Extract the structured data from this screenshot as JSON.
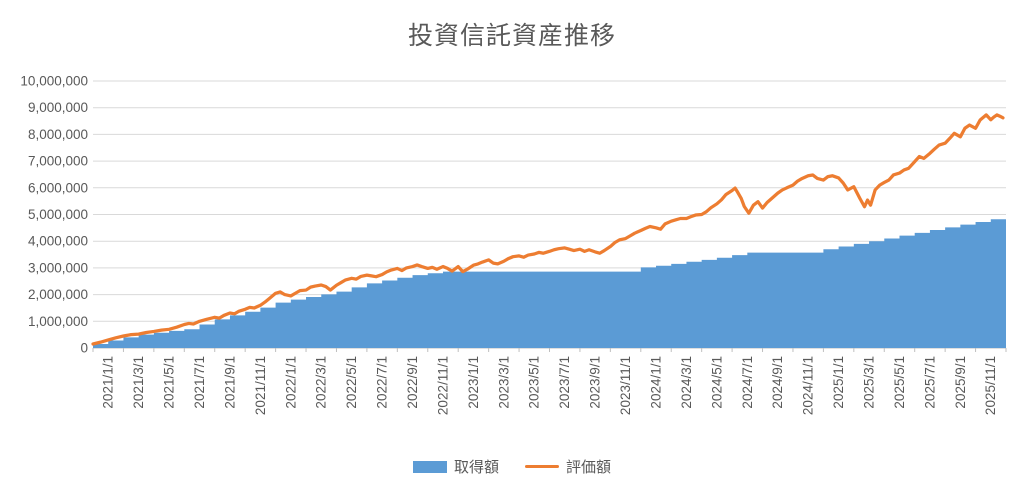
{
  "title": "投資信託資産推移",
  "colors": {
    "area": "#5B9BD5",
    "line": "#ED7D31",
    "gridline": "#D9D9D9",
    "axis": "#BFBFBF",
    "text": "#595959"
  },
  "legend": {
    "items": [
      {
        "label": "取得額",
        "type": "area",
        "color": "#5B9BD5"
      },
      {
        "label": "評価額",
        "type": "line",
        "color": "#ED7D31"
      }
    ]
  },
  "chart_data": {
    "type": "combo",
    "title": "投資信託資産推移",
    "xlabel": "",
    "ylabel": "",
    "grid": true,
    "legend_position": "bottom",
    "ylim": [
      0,
      10000000
    ],
    "y_tick_step": 1000000,
    "y_tick_labels": [
      "0",
      "1,000,000",
      "2,000,000",
      "3,000,000",
      "4,000,000",
      "5,000,000",
      "6,000,000",
      "7,000,000",
      "8,000,000",
      "9,000,000",
      "10,000,000"
    ],
    "x_range": [
      "2021/1/1",
      "2025/12/31"
    ],
    "months_span": 60,
    "x_tick_labels": [
      "2021/1/1",
      "2021/3/1",
      "2021/5/1",
      "2021/7/1",
      "2021/9/1",
      "2021/11/1",
      "2022/1/1",
      "2022/3/1",
      "2022/5/1",
      "2022/7/1",
      "2022/9/1",
      "2022/11/1",
      "2023/1/1",
      "2023/3/1",
      "2023/5/1",
      "2023/7/1",
      "2023/9/1",
      "2023/11/1",
      "2024/1/1",
      "2024/3/1",
      "2024/5/1",
      "2024/7/1",
      "2024/9/1",
      "2024/11/1",
      "2025/1/1",
      "2025/3/1",
      "2025/5/1",
      "2025/7/1",
      "2025/9/1",
      "2025/11/1"
    ],
    "series": [
      {
        "name": "取得額",
        "type": "area",
        "color": "#5B9BD5",
        "unit": "monthly cumulative, yen",
        "values": [
          150000,
          280000,
          400000,
          500000,
          570000,
          640000,
          700000,
          880000,
          1070000,
          1220000,
          1360000,
          1510000,
          1700000,
          1810000,
          1910000,
          2010000,
          2110000,
          2270000,
          2420000,
          2530000,
          2630000,
          2730000,
          2800000,
          2860000,
          2860000,
          2860000,
          2860000,
          2860000,
          2860000,
          2860000,
          2860000,
          2860000,
          2860000,
          2860000,
          2860000,
          2860000,
          3020000,
          3080000,
          3150000,
          3230000,
          3300000,
          3380000,
          3480000,
          3570000,
          3570000,
          3570000,
          3570000,
          3570000,
          3700000,
          3800000,
          3900000,
          4000000,
          4100000,
          4210000,
          4310000,
          4420000,
          4520000,
          4620000,
          4720000,
          4820000
        ]
      },
      {
        "name": "評価額",
        "type": "line",
        "color": "#ED7D31",
        "unit": "[months since 2021/1/1, yen]",
        "points": [
          [
            0,
            150000
          ],
          [
            0.5,
            220000
          ],
          [
            1,
            300000
          ],
          [
            1.5,
            380000
          ],
          [
            2,
            450000
          ],
          [
            2.5,
            500000
          ],
          [
            3,
            520000
          ],
          [
            3.5,
            580000
          ],
          [
            4,
            620000
          ],
          [
            4.5,
            670000
          ],
          [
            5,
            700000
          ],
          [
            5.5,
            780000
          ],
          [
            6,
            880000
          ],
          [
            6.3,
            920000
          ],
          [
            6.6,
            900000
          ],
          [
            7,
            1000000
          ],
          [
            7.5,
            1080000
          ],
          [
            8,
            1150000
          ],
          [
            8.3,
            1120000
          ],
          [
            8.6,
            1220000
          ],
          [
            9,
            1310000
          ],
          [
            9.3,
            1280000
          ],
          [
            9.6,
            1380000
          ],
          [
            10,
            1450000
          ],
          [
            10.3,
            1520000
          ],
          [
            10.6,
            1500000
          ],
          [
            11,
            1600000
          ],
          [
            11.3,
            1720000
          ],
          [
            11.6,
            1860000
          ],
          [
            12,
            2050000
          ],
          [
            12.3,
            2100000
          ],
          [
            12.6,
            2000000
          ],
          [
            13,
            1950000
          ],
          [
            13.3,
            2050000
          ],
          [
            13.6,
            2150000
          ],
          [
            14,
            2170000
          ],
          [
            14.3,
            2280000
          ],
          [
            14.6,
            2320000
          ],
          [
            15,
            2360000
          ],
          [
            15.3,
            2300000
          ],
          [
            15.6,
            2170000
          ],
          [
            16,
            2350000
          ],
          [
            16.3,
            2450000
          ],
          [
            16.6,
            2550000
          ],
          [
            17,
            2610000
          ],
          [
            17.3,
            2580000
          ],
          [
            17.6,
            2680000
          ],
          [
            18,
            2730000
          ],
          [
            18.3,
            2700000
          ],
          [
            18.6,
            2670000
          ],
          [
            19,
            2750000
          ],
          [
            19.3,
            2850000
          ],
          [
            19.6,
            2920000
          ],
          [
            20,
            2980000
          ],
          [
            20.3,
            2900000
          ],
          [
            20.6,
            3000000
          ],
          [
            21,
            3050000
          ],
          [
            21.3,
            3110000
          ],
          [
            21.6,
            3050000
          ],
          [
            22,
            2980000
          ],
          [
            22.3,
            3020000
          ],
          [
            22.6,
            2950000
          ],
          [
            23,
            3050000
          ],
          [
            23.3,
            2980000
          ],
          [
            23.6,
            2880000
          ],
          [
            24,
            3050000
          ],
          [
            24.3,
            2860000
          ],
          [
            24.6,
            2950000
          ],
          [
            25,
            3100000
          ],
          [
            25.3,
            3150000
          ],
          [
            25.6,
            3220000
          ],
          [
            26,
            3300000
          ],
          [
            26.3,
            3180000
          ],
          [
            26.6,
            3150000
          ],
          [
            27,
            3250000
          ],
          [
            27.3,
            3350000
          ],
          [
            27.6,
            3420000
          ],
          [
            28,
            3450000
          ],
          [
            28.3,
            3400000
          ],
          [
            28.6,
            3480000
          ],
          [
            29,
            3520000
          ],
          [
            29.3,
            3580000
          ],
          [
            29.6,
            3550000
          ],
          [
            30,
            3620000
          ],
          [
            30.3,
            3680000
          ],
          [
            30.6,
            3720000
          ],
          [
            31,
            3750000
          ],
          [
            31.3,
            3700000
          ],
          [
            31.6,
            3650000
          ],
          [
            32,
            3700000
          ],
          [
            32.3,
            3620000
          ],
          [
            32.6,
            3680000
          ],
          [
            33,
            3600000
          ],
          [
            33.3,
            3550000
          ],
          [
            33.6,
            3650000
          ],
          [
            34,
            3800000
          ],
          [
            34.3,
            3950000
          ],
          [
            34.6,
            4050000
          ],
          [
            35,
            4100000
          ],
          [
            35.3,
            4200000
          ],
          [
            35.6,
            4300000
          ],
          [
            36,
            4400000
          ],
          [
            36.3,
            4480000
          ],
          [
            36.6,
            4550000
          ],
          [
            37,
            4500000
          ],
          [
            37.3,
            4450000
          ],
          [
            37.6,
            4650000
          ],
          [
            38,
            4750000
          ],
          [
            38.3,
            4800000
          ],
          [
            38.6,
            4850000
          ],
          [
            39,
            4850000
          ],
          [
            39.3,
            4920000
          ],
          [
            39.6,
            4980000
          ],
          [
            40,
            5000000
          ],
          [
            40.3,
            5100000
          ],
          [
            40.6,
            5250000
          ],
          [
            41,
            5400000
          ],
          [
            41.3,
            5550000
          ],
          [
            41.6,
            5750000
          ],
          [
            42,
            5900000
          ],
          [
            42.2,
            5990000
          ],
          [
            42.4,
            5800000
          ],
          [
            42.6,
            5600000
          ],
          [
            42.8,
            5300000
          ],
          [
            43.1,
            5050000
          ],
          [
            43.4,
            5350000
          ],
          [
            43.7,
            5480000
          ],
          [
            44,
            5240000
          ],
          [
            44.3,
            5450000
          ],
          [
            44.6,
            5600000
          ],
          [
            45,
            5800000
          ],
          [
            45.3,
            5920000
          ],
          [
            45.6,
            6000000
          ],
          [
            46,
            6100000
          ],
          [
            46.3,
            6250000
          ],
          [
            46.6,
            6350000
          ],
          [
            47,
            6450000
          ],
          [
            47.3,
            6480000
          ],
          [
            47.6,
            6350000
          ],
          [
            48,
            6290000
          ],
          [
            48.3,
            6420000
          ],
          [
            48.6,
            6450000
          ],
          [
            49,
            6370000
          ],
          [
            49.3,
            6180000
          ],
          [
            49.6,
            5920000
          ],
          [
            50,
            6040000
          ],
          [
            50.4,
            5600000
          ],
          [
            50.7,
            5290000
          ],
          [
            50.9,
            5540000
          ],
          [
            51.1,
            5350000
          ],
          [
            51.4,
            5920000
          ],
          [
            51.7,
            6100000
          ],
          [
            52,
            6200000
          ],
          [
            52.3,
            6290000
          ],
          [
            52.6,
            6480000
          ],
          [
            53,
            6550000
          ],
          [
            53.3,
            6670000
          ],
          [
            53.6,
            6730000
          ],
          [
            54,
            6980000
          ],
          [
            54.3,
            7170000
          ],
          [
            54.6,
            7100000
          ],
          [
            55,
            7290000
          ],
          [
            55.3,
            7450000
          ],
          [
            55.6,
            7600000
          ],
          [
            56,
            7670000
          ],
          [
            56.3,
            7850000
          ],
          [
            56.6,
            8040000
          ],
          [
            57,
            7910000
          ],
          [
            57.3,
            8230000
          ],
          [
            57.6,
            8350000
          ],
          [
            58,
            8230000
          ],
          [
            58.3,
            8540000
          ],
          [
            58.7,
            8730000
          ],
          [
            59,
            8550000
          ],
          [
            59.2,
            8650000
          ],
          [
            59.4,
            8730000
          ],
          [
            59.6,
            8680000
          ],
          [
            59.8,
            8620000
          ]
        ]
      }
    ]
  }
}
